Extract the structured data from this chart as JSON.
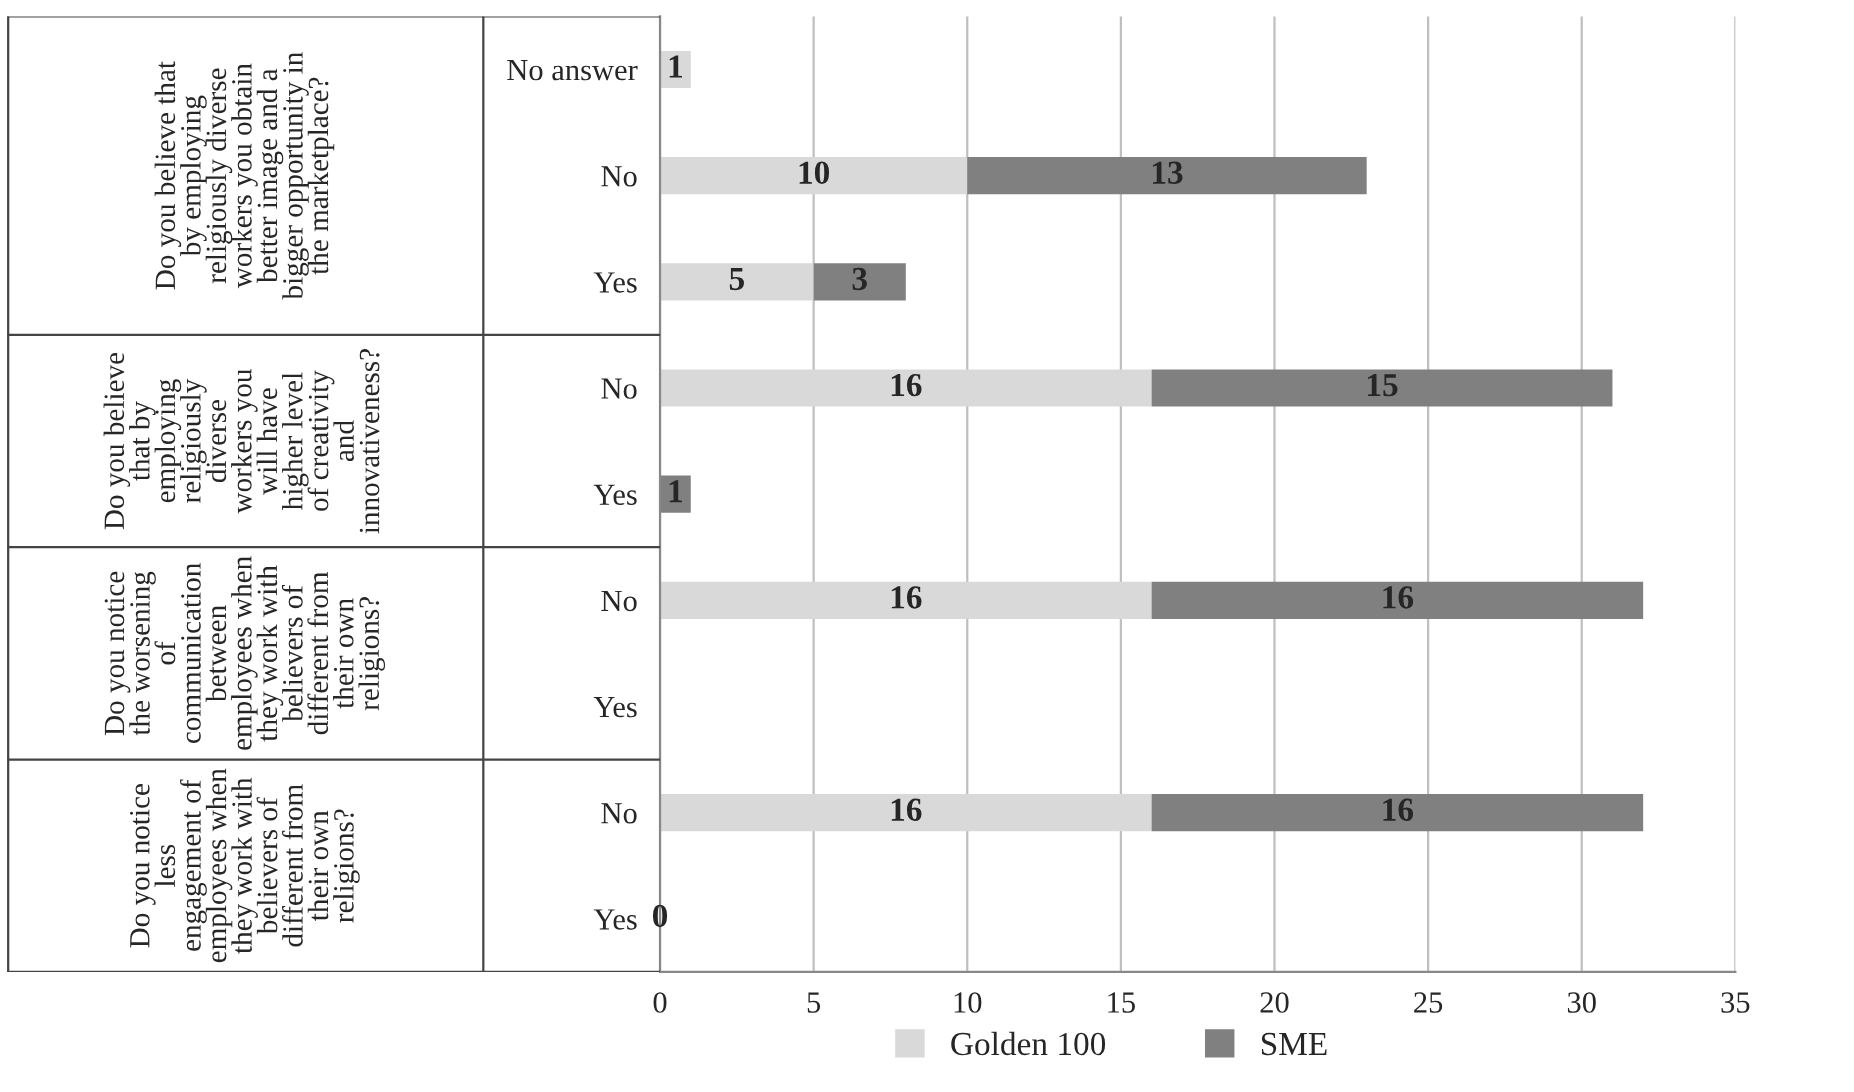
{
  "chart_data": {
    "type": "bar",
    "orientation": "horizontal",
    "stacked": true,
    "categories": [
      "No answer",
      "No",
      "Yes",
      "No",
      "Yes",
      "No",
      "Yes",
      "No",
      "Yes"
    ],
    "series": [
      {
        "name": "Golden 100",
        "color": "#d9d9d9",
        "values": [
          1,
          10,
          5,
          16,
          null,
          16,
          null,
          16,
          0
        ]
      },
      {
        "name": "SME",
        "color": "#808080",
        "values": [
          null,
          13,
          3,
          15,
          1,
          16,
          null,
          16,
          null
        ]
      }
    ],
    "annotations": [
      "Do you believe that by employing religiously diverse workers you obtain better image and a bigger opportunity in the marketplace?",
      "Do you believe that by employing religiously diverse workers you will have higher level of creativity and innovativeness?",
      "Do you notice the worsening of communication between employees when they work with believers of different from their own religions?",
      "Do you notice less engagement of employees when they work with believers of different from their own religions?"
    ],
    "xlim": [
      0,
      35
    ],
    "xticks": [
      0,
      5,
      10,
      15,
      20,
      25,
      30,
      35
    ],
    "grid": "x",
    "legend": "bottom",
    "data_labels": true
  }
}
